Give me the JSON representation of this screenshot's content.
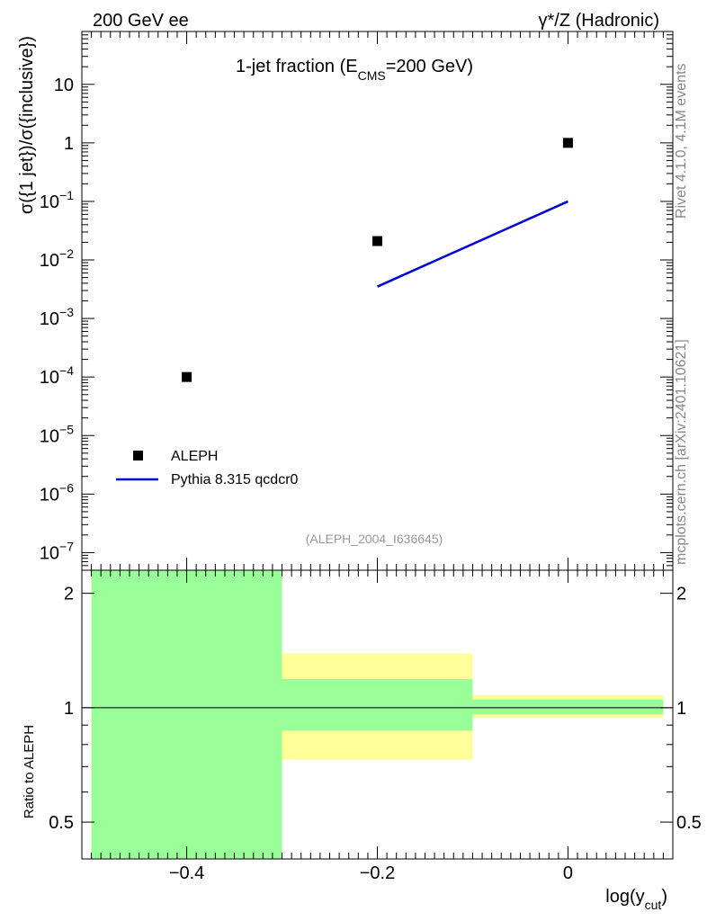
{
  "header": {
    "left": "200 GeV ee",
    "right": "γ*/Z (Hadronic)"
  },
  "side_labels": {
    "rivet": "Rivet 4.1.0,  4.1M events",
    "mcplots": "mcplots.cern.ch [arXiv:2401.10621]"
  },
  "chart_data": [
    {
      "type": "scatter",
      "title_main": "1-jet fraction (E",
      "title_sub": "CMS",
      "title_tail": "=200 GeV)",
      "ylabel": "σ({1 jet})/σ({inclusive})",
      "yscale": "log",
      "ylim": [
        5e-08,
        80
      ],
      "xlim": [
        -0.51,
        0.11
      ],
      "y_ticks": [
        {
          "value": 1e-07,
          "base": "10",
          "exp": "−7"
        },
        {
          "value": 1e-06,
          "base": "10",
          "exp": "−6"
        },
        {
          "value": 1e-05,
          "base": "10",
          "exp": "−5"
        },
        {
          "value": 0.0001,
          "base": "10",
          "exp": "−4"
        },
        {
          "value": 0.001,
          "base": "10",
          "exp": "−3"
        },
        {
          "value": 0.01,
          "base": "10",
          "exp": "−2"
        },
        {
          "value": 0.1,
          "base": "10",
          "exp": "−1"
        },
        {
          "value": 1,
          "base": "1",
          "exp": ""
        },
        {
          "value": 10,
          "base": "10",
          "exp": ""
        }
      ],
      "series": [
        {
          "name": "ALEPH",
          "kind": "points",
          "color": "#000000",
          "x": [
            -0.4,
            -0.2,
            0.0
          ],
          "y": [
            0.0001,
            0.021,
            1.0
          ]
        },
        {
          "name": "Pythia 8.315 qcdcr0",
          "kind": "line",
          "color": "#0000dd",
          "x": [
            -0.2,
            0.0
          ],
          "y": [
            0.0035,
            0.1
          ]
        }
      ],
      "annotation": "(ALEPH_2004_I636645)"
    },
    {
      "type": "area",
      "ylabel": "Ratio to ALEPH",
      "xlabel_main": "log(y",
      "xlabel_sub": "cut",
      "xlabel_tail": ")",
      "ylim": [
        0.4,
        2.3
      ],
      "xlim": [
        -0.51,
        0.11
      ],
      "y_ticks": [
        0.5,
        1,
        2
      ],
      "y_tick_labels": [
        "0.5",
        "1",
        "2"
      ],
      "x_ticks": [
        -0.4,
        -0.2,
        0.0
      ],
      "x_tick_labels": [
        "−0.4",
        "−0.2",
        "0"
      ],
      "reference_line": 1.0,
      "bands": [
        {
          "x0": -0.5,
          "x1": -0.3,
          "yellow": [
            0.35,
            2.5
          ],
          "green": [
            0.35,
            2.5
          ]
        },
        {
          "x0": -0.3,
          "x1": -0.1,
          "yellow": [
            0.73,
            1.39
          ],
          "green": [
            0.87,
            1.19
          ]
        },
        {
          "x0": -0.1,
          "x1": 0.1,
          "yellow": [
            0.94,
            1.08
          ],
          "green": [
            0.96,
            1.05
          ]
        }
      ],
      "colors": {
        "green": "#99ff99",
        "yellow": "#ffff99"
      }
    }
  ]
}
